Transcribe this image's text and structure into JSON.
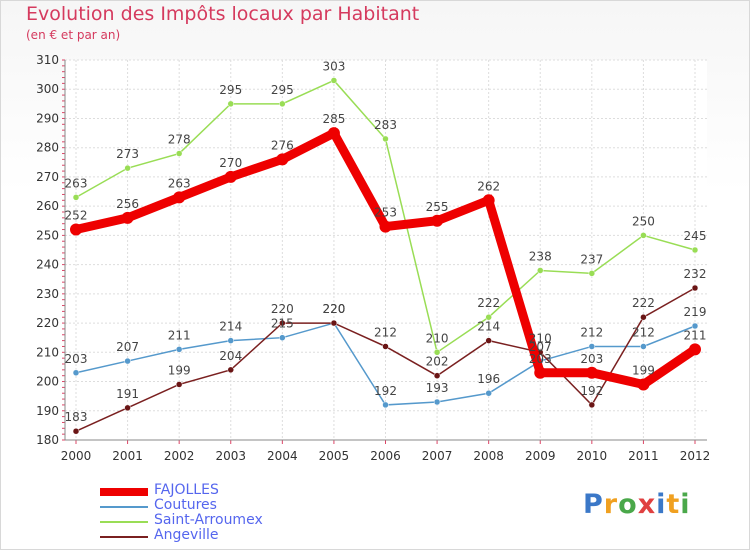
{
  "chart_data": {
    "type": "line",
    "title": "Evolution des Impôts locaux par Habitant",
    "subtitle": "(en € et par an)",
    "xlabel": "",
    "ylabel": "",
    "x": [
      "2000",
      "2001",
      "2002",
      "2003",
      "2004",
      "2005",
      "2006",
      "2007",
      "2008",
      "2009",
      "2010",
      "2011",
      "2012"
    ],
    "ylim": [
      180,
      310
    ],
    "yticks": [
      "180",
      "190",
      "200",
      "210",
      "220",
      "230",
      "240",
      "250",
      "260",
      "270",
      "280",
      "290",
      "300",
      "310"
    ],
    "grid": true,
    "legend_position": "bottom-left",
    "series": [
      {
        "name": "FAJOLLES",
        "color": "#ee0000",
        "values": [
          252,
          256,
          263,
          270,
          276,
          285,
          253,
          255,
          262,
          203,
          203,
          199,
          211
        ]
      },
      {
        "name": "Coutures",
        "color": "#5599cc",
        "values": [
          203,
          207,
          211,
          214,
          215,
          220,
          192,
          193,
          196,
          207,
          212,
          212,
          219
        ]
      },
      {
        "name": "Saint-Arroumex",
        "color": "#99dd55",
        "values": [
          263,
          273,
          278,
          295,
          295,
          303,
          283,
          210,
          222,
          238,
          237,
          250,
          245
        ]
      },
      {
        "name": "Angeville",
        "color": "#7a2020",
        "values": [
          183,
          191,
          199,
          204,
          220,
          220,
          212,
          202,
          214,
          210,
          192,
          222,
          232
        ]
      }
    ]
  },
  "logo": {
    "letters": [
      "P",
      "r",
      "o",
      "x",
      "i",
      "t",
      "i"
    ],
    "colors": [
      "#3b78c8",
      "#f0a020",
      "#4aa84a",
      "#e04040",
      "#3b78c8",
      "#f0a020",
      "#4aa84a"
    ]
  }
}
